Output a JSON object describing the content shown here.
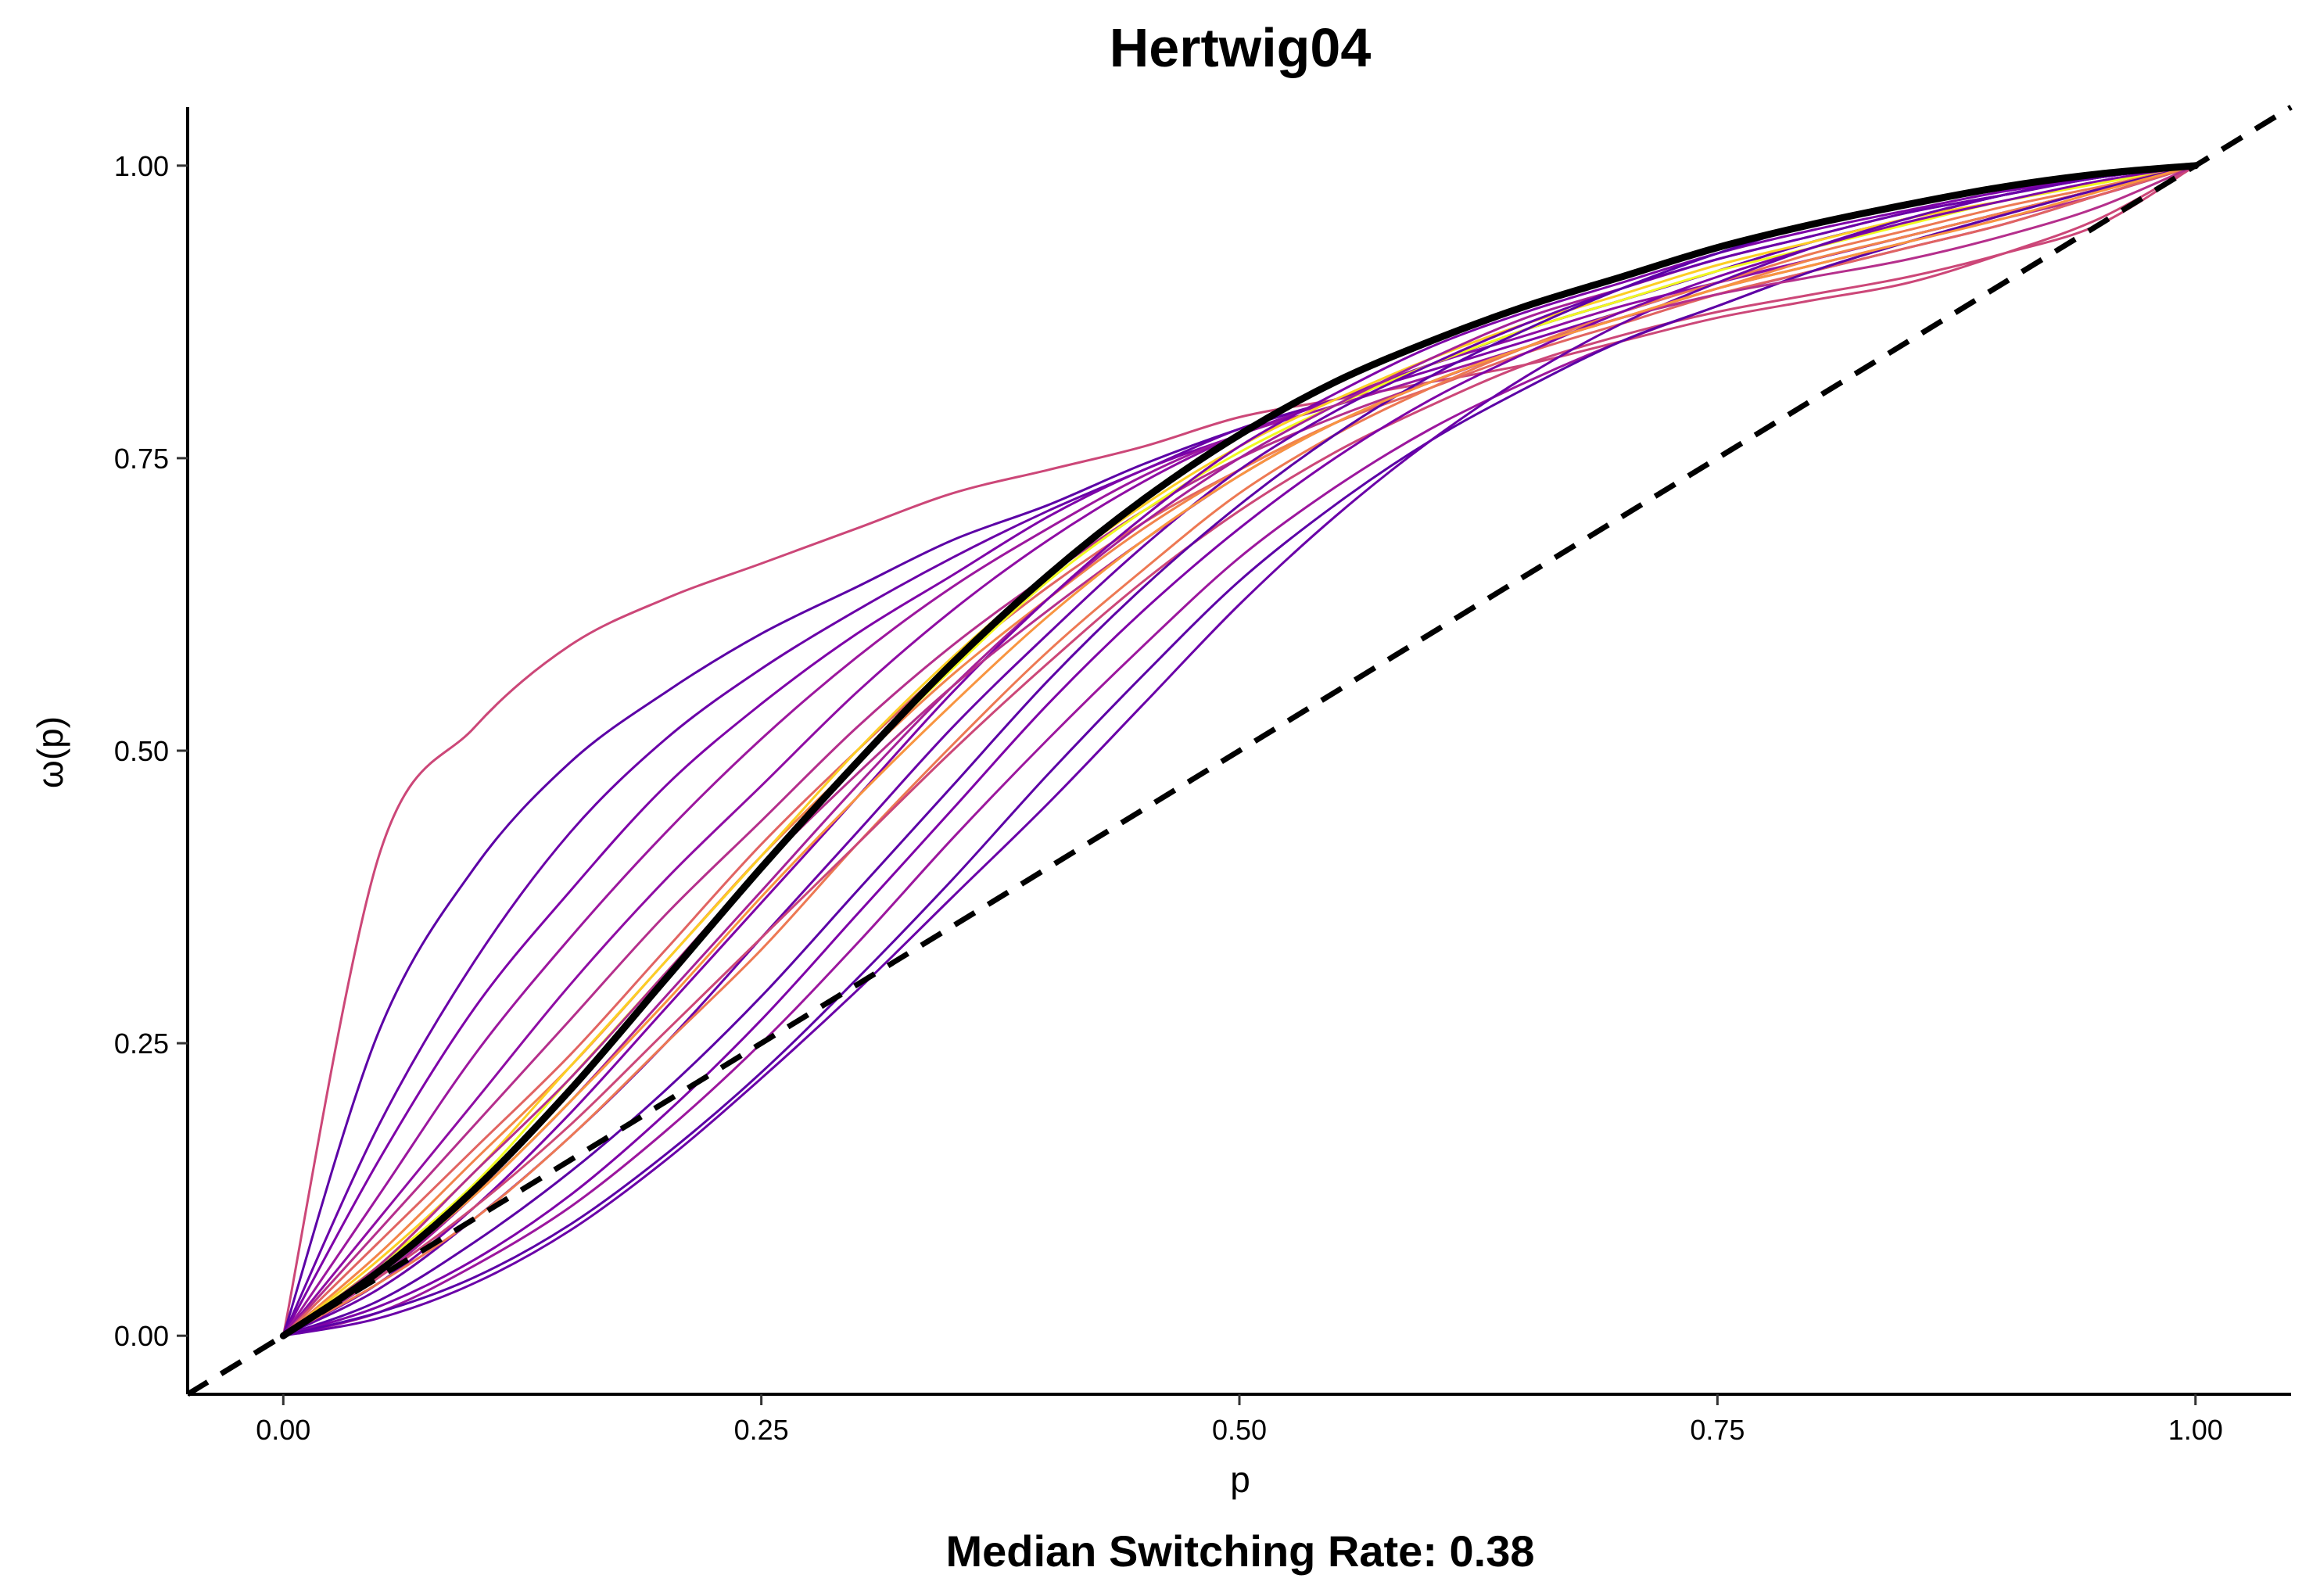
{
  "chart_data": {
    "type": "line",
    "title": "Hertwig04",
    "xlabel": "p",
    "ylabel": "ω(p)",
    "caption": "Median Switching Rate: 0.38",
    "xlim": [
      -0.05,
      1.05
    ],
    "ylim": [
      -0.05,
      1.05
    ],
    "xticks": [
      0,
      0.25,
      0.5,
      0.75,
      1
    ],
    "xtick_labels": [
      "0.00",
      "0.25",
      "0.50",
      "0.75",
      "1.00"
    ],
    "yticks": [
      0,
      0.25,
      0.5,
      0.75,
      1
    ],
    "ytick_labels": [
      "0.00",
      "0.25",
      "0.50",
      "0.75",
      "1.00"
    ],
    "grid": false,
    "legend": "none",
    "x": [
      0,
      0.05,
      0.1,
      0.15,
      0.2,
      0.25,
      0.3,
      0.35,
      0.4,
      0.45,
      0.5,
      0.55,
      0.6,
      0.65,
      0.7,
      0.75,
      0.8,
      0.85,
      0.9,
      0.95,
      1
    ],
    "individual_curves": [
      {
        "color": "#cc4778",
        "values": [
          0,
          0.41,
          0.52,
          0.59,
          0.63,
          0.66,
          0.69,
          0.72,
          0.74,
          0.76,
          0.785,
          0.8,
          0.815,
          0.83,
          0.85,
          0.87,
          0.885,
          0.9,
          0.925,
          0.955,
          1
        ]
      },
      {
        "color": "#5c01a6",
        "values": [
          0,
          0.26,
          0.4,
          0.49,
          0.55,
          0.6,
          0.64,
          0.68,
          0.71,
          0.745,
          0.775,
          0.8,
          0.83,
          0.86,
          0.885,
          0.91,
          0.935,
          0.955,
          0.975,
          0.99,
          1
        ]
      },
      {
        "color": "#6a00a8",
        "values": [
          0,
          0.18,
          0.32,
          0.43,
          0.51,
          0.57,
          0.62,
          0.665,
          0.705,
          0.74,
          0.775,
          0.8,
          0.83,
          0.86,
          0.885,
          0.91,
          0.935,
          0.955,
          0.975,
          0.99,
          1
        ]
      },
      {
        "color": "#7e03a8",
        "values": [
          0,
          0.15,
          0.28,
          0.38,
          0.47,
          0.54,
          0.6,
          0.65,
          0.7,
          0.74,
          0.77,
          0.8,
          0.825,
          0.85,
          0.875,
          0.9,
          0.92,
          0.94,
          0.96,
          0.98,
          1
        ]
      },
      {
        "color": "#9c179e",
        "values": [
          0,
          0.12,
          0.24,
          0.34,
          0.43,
          0.51,
          0.58,
          0.64,
          0.69,
          0.735,
          0.77,
          0.795,
          0.82,
          0.845,
          0.87,
          0.89,
          0.91,
          0.93,
          0.95,
          0.975,
          1
        ]
      },
      {
        "color": "#8f0da4",
        "values": [
          0,
          0.1,
          0.2,
          0.3,
          0.39,
          0.47,
          0.55,
          0.62,
          0.68,
          0.73,
          0.77,
          0.8,
          0.83,
          0.855,
          0.88,
          0.9,
          0.92,
          0.94,
          0.96,
          0.98,
          1
        ]
      },
      {
        "color": "#b52f8c",
        "values": [
          0,
          0.09,
          0.18,
          0.27,
          0.36,
          0.44,
          0.52,
          0.59,
          0.65,
          0.705,
          0.75,
          0.785,
          0.815,
          0.845,
          0.87,
          0.895,
          0.915,
          0.935,
          0.955,
          0.975,
          1
        ]
      },
      {
        "color": "#e16462",
        "values": [
          0,
          0.08,
          0.16,
          0.24,
          0.33,
          0.42,
          0.5,
          0.575,
          0.64,
          0.695,
          0.74,
          0.78,
          0.81,
          0.84,
          0.865,
          0.89,
          0.91,
          0.93,
          0.95,
          0.975,
          1
        ]
      },
      {
        "color": "#f2844b",
        "values": [
          0,
          0.07,
          0.15,
          0.23,
          0.32,
          0.41,
          0.49,
          0.565,
          0.63,
          0.69,
          0.74,
          0.78,
          0.815,
          0.845,
          0.87,
          0.895,
          0.92,
          0.94,
          0.96,
          0.98,
          1
        ]
      },
      {
        "color": "#fcce25",
        "values": [
          0,
          0.065,
          0.14,
          0.23,
          0.32,
          0.41,
          0.5,
          0.58,
          0.65,
          0.71,
          0.76,
          0.8,
          0.835,
          0.865,
          0.89,
          0.915,
          0.935,
          0.955,
          0.97,
          0.985,
          1
        ]
      },
      {
        "color": "#f0f921",
        "values": [
          0,
          0.06,
          0.13,
          0.22,
          0.31,
          0.4,
          0.49,
          0.57,
          0.645,
          0.705,
          0.755,
          0.795,
          0.83,
          0.86,
          0.885,
          0.91,
          0.93,
          0.95,
          0.97,
          0.985,
          1
        ]
      },
      {
        "color": "#a62098",
        "values": [
          0,
          0.05,
          0.12,
          0.2,
          0.29,
          0.38,
          0.47,
          0.555,
          0.63,
          0.695,
          0.75,
          0.795,
          0.835,
          0.87,
          0.895,
          0.92,
          0.94,
          0.96,
          0.975,
          0.99,
          1
        ]
      },
      {
        "color": "#7e03a8",
        "values": [
          0,
          0.045,
          0.11,
          0.19,
          0.28,
          0.37,
          0.46,
          0.55,
          0.63,
          0.7,
          0.76,
          0.805,
          0.845,
          0.875,
          0.9,
          0.925,
          0.945,
          0.962,
          0.978,
          0.99,
          1
        ]
      },
      {
        "color": "#6a00a8",
        "values": [
          0,
          0.04,
          0.1,
          0.17,
          0.25,
          0.34,
          0.43,
          0.52,
          0.6,
          0.675,
          0.74,
          0.79,
          0.83,
          0.865,
          0.895,
          0.92,
          0.94,
          0.96,
          0.975,
          0.99,
          1
        ]
      },
      {
        "color": "#ed7953",
        "values": [
          0,
          0.045,
          0.1,
          0.17,
          0.25,
          0.33,
          0.42,
          0.505,
          0.585,
          0.655,
          0.72,
          0.77,
          0.81,
          0.845,
          0.875,
          0.9,
          0.925,
          0.945,
          0.965,
          0.982,
          1
        ]
      },
      {
        "color": "#cc4778",
        "values": [
          0,
          0.05,
          0.11,
          0.18,
          0.26,
          0.34,
          0.42,
          0.5,
          0.575,
          0.645,
          0.705,
          0.755,
          0.795,
          0.83,
          0.855,
          0.875,
          0.89,
          0.905,
          0.925,
          0.95,
          1
        ]
      },
      {
        "color": "#5c01a6",
        "values": [
          0,
          0.03,
          0.08,
          0.14,
          0.21,
          0.29,
          0.38,
          0.47,
          0.56,
          0.64,
          0.71,
          0.77,
          0.82,
          0.86,
          0.895,
          0.925,
          0.95,
          0.967,
          0.98,
          0.992,
          1
        ]
      },
      {
        "color": "#7e03a8",
        "values": [
          0,
          0.025,
          0.065,
          0.12,
          0.19,
          0.27,
          0.36,
          0.45,
          0.54,
          0.62,
          0.69,
          0.75,
          0.8,
          0.84,
          0.875,
          0.905,
          0.93,
          0.952,
          0.97,
          0.987,
          1
        ]
      },
      {
        "color": "#9c179e",
        "values": [
          0,
          0.02,
          0.06,
          0.11,
          0.175,
          0.25,
          0.335,
          0.425,
          0.51,
          0.59,
          0.665,
          0.725,
          0.775,
          0.815,
          0.85,
          0.88,
          0.91,
          0.935,
          0.958,
          0.98,
          1
        ]
      },
      {
        "color": "#5c01a6",
        "values": [
          0,
          0.02,
          0.05,
          0.095,
          0.155,
          0.225,
          0.305,
          0.39,
          0.48,
          0.565,
          0.645,
          0.71,
          0.765,
          0.81,
          0.85,
          0.88,
          0.91,
          0.935,
          0.958,
          0.98,
          1
        ]
      },
      {
        "color": "#6a00a8",
        "values": [
          0,
          0.015,
          0.045,
          0.09,
          0.15,
          0.22,
          0.295,
          0.375,
          0.455,
          0.54,
          0.625,
          0.7,
          0.765,
          0.82,
          0.865,
          0.9,
          0.93,
          0.955,
          0.975,
          0.99,
          1
        ]
      },
      {
        "color": "#b52f8c",
        "values": [
          0,
          0.06,
          0.14,
          0.22,
          0.31,
          0.4,
          0.48,
          0.555,
          0.62,
          0.68,
          0.735,
          0.78,
          0.815,
          0.845,
          0.87,
          0.89,
          0.905,
          0.92,
          0.94,
          0.965,
          1
        ]
      },
      {
        "color": "#f89540",
        "values": [
          0,
          0.055,
          0.12,
          0.2,
          0.285,
          0.375,
          0.46,
          0.54,
          0.615,
          0.68,
          0.735,
          0.78,
          0.815,
          0.845,
          0.87,
          0.895,
          0.915,
          0.935,
          0.955,
          0.978,
          1
        ]
      }
    ],
    "mean_curve": {
      "color": "#000000",
      "values": [
        0,
        0.055,
        0.125,
        0.21,
        0.305,
        0.4,
        0.49,
        0.575,
        0.65,
        0.715,
        0.77,
        0.815,
        0.85,
        0.88,
        0.905,
        0.93,
        0.95,
        0.967,
        0.982,
        0.993,
        1
      ]
    },
    "reference_line": {
      "style": "dashed",
      "color": "#000000",
      "label": "identity",
      "from": [
        -0.05,
        -0.05
      ],
      "to": [
        1.05,
        1.05
      ]
    }
  }
}
